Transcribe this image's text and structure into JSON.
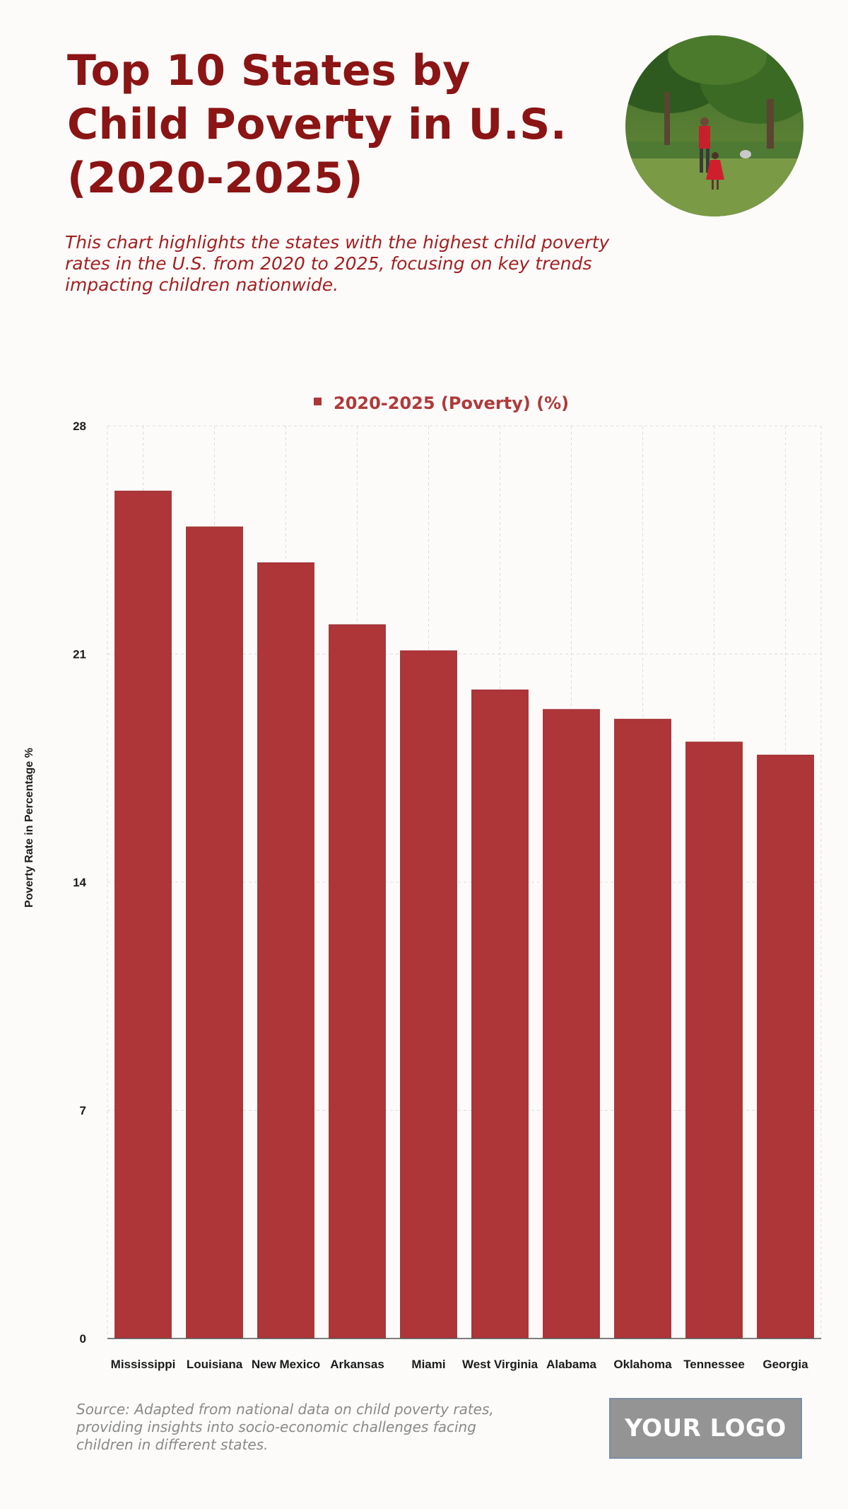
{
  "header": {
    "title": "Top 10 States by Child Poverty in U.S. (2020-2025)",
    "subtitle": "This chart highlights the states with the highest child poverty rates in the U.S. from 2020 to 2025, focusing on key trends impacting children nationwide."
  },
  "footer": {
    "source": "Source: Adapted from national data on child poverty rates, providing insights into socio-economic challenges facing children in different states.",
    "logo_text": "YOUR LOGO"
  },
  "colors": {
    "title": "#8b1414",
    "bar": "#ae3538",
    "bar_stroke": "#9c2c2f",
    "legend_text": "#b03a3a",
    "grid": "#dcdcdc",
    "axis_text": "#1c1c1c"
  },
  "chart_data": {
    "type": "bar",
    "title": "",
    "legend": [
      "2020-2025 (Poverty) (%)"
    ],
    "legend_position": "top-center",
    "xlabel": "",
    "ylabel": "Poverty Rate in Percentage %",
    "ylim": [
      0,
      28
    ],
    "yticks": [
      0,
      7,
      14,
      21,
      28
    ],
    "grid": true,
    "categories": [
      "Mississippi",
      "Louisiana",
      "New Mexico",
      "Arkansas",
      "Miami",
      "West Virginia",
      "Alabama",
      "Oklahoma",
      "Tennessee",
      "Georgia"
    ],
    "series": [
      {
        "name": "2020-2025 (Poverty) (%)",
        "values": [
          26.0,
          24.9,
          23.8,
          21.9,
          21.1,
          19.9,
          19.3,
          19.0,
          18.3,
          17.9
        ]
      }
    ]
  }
}
